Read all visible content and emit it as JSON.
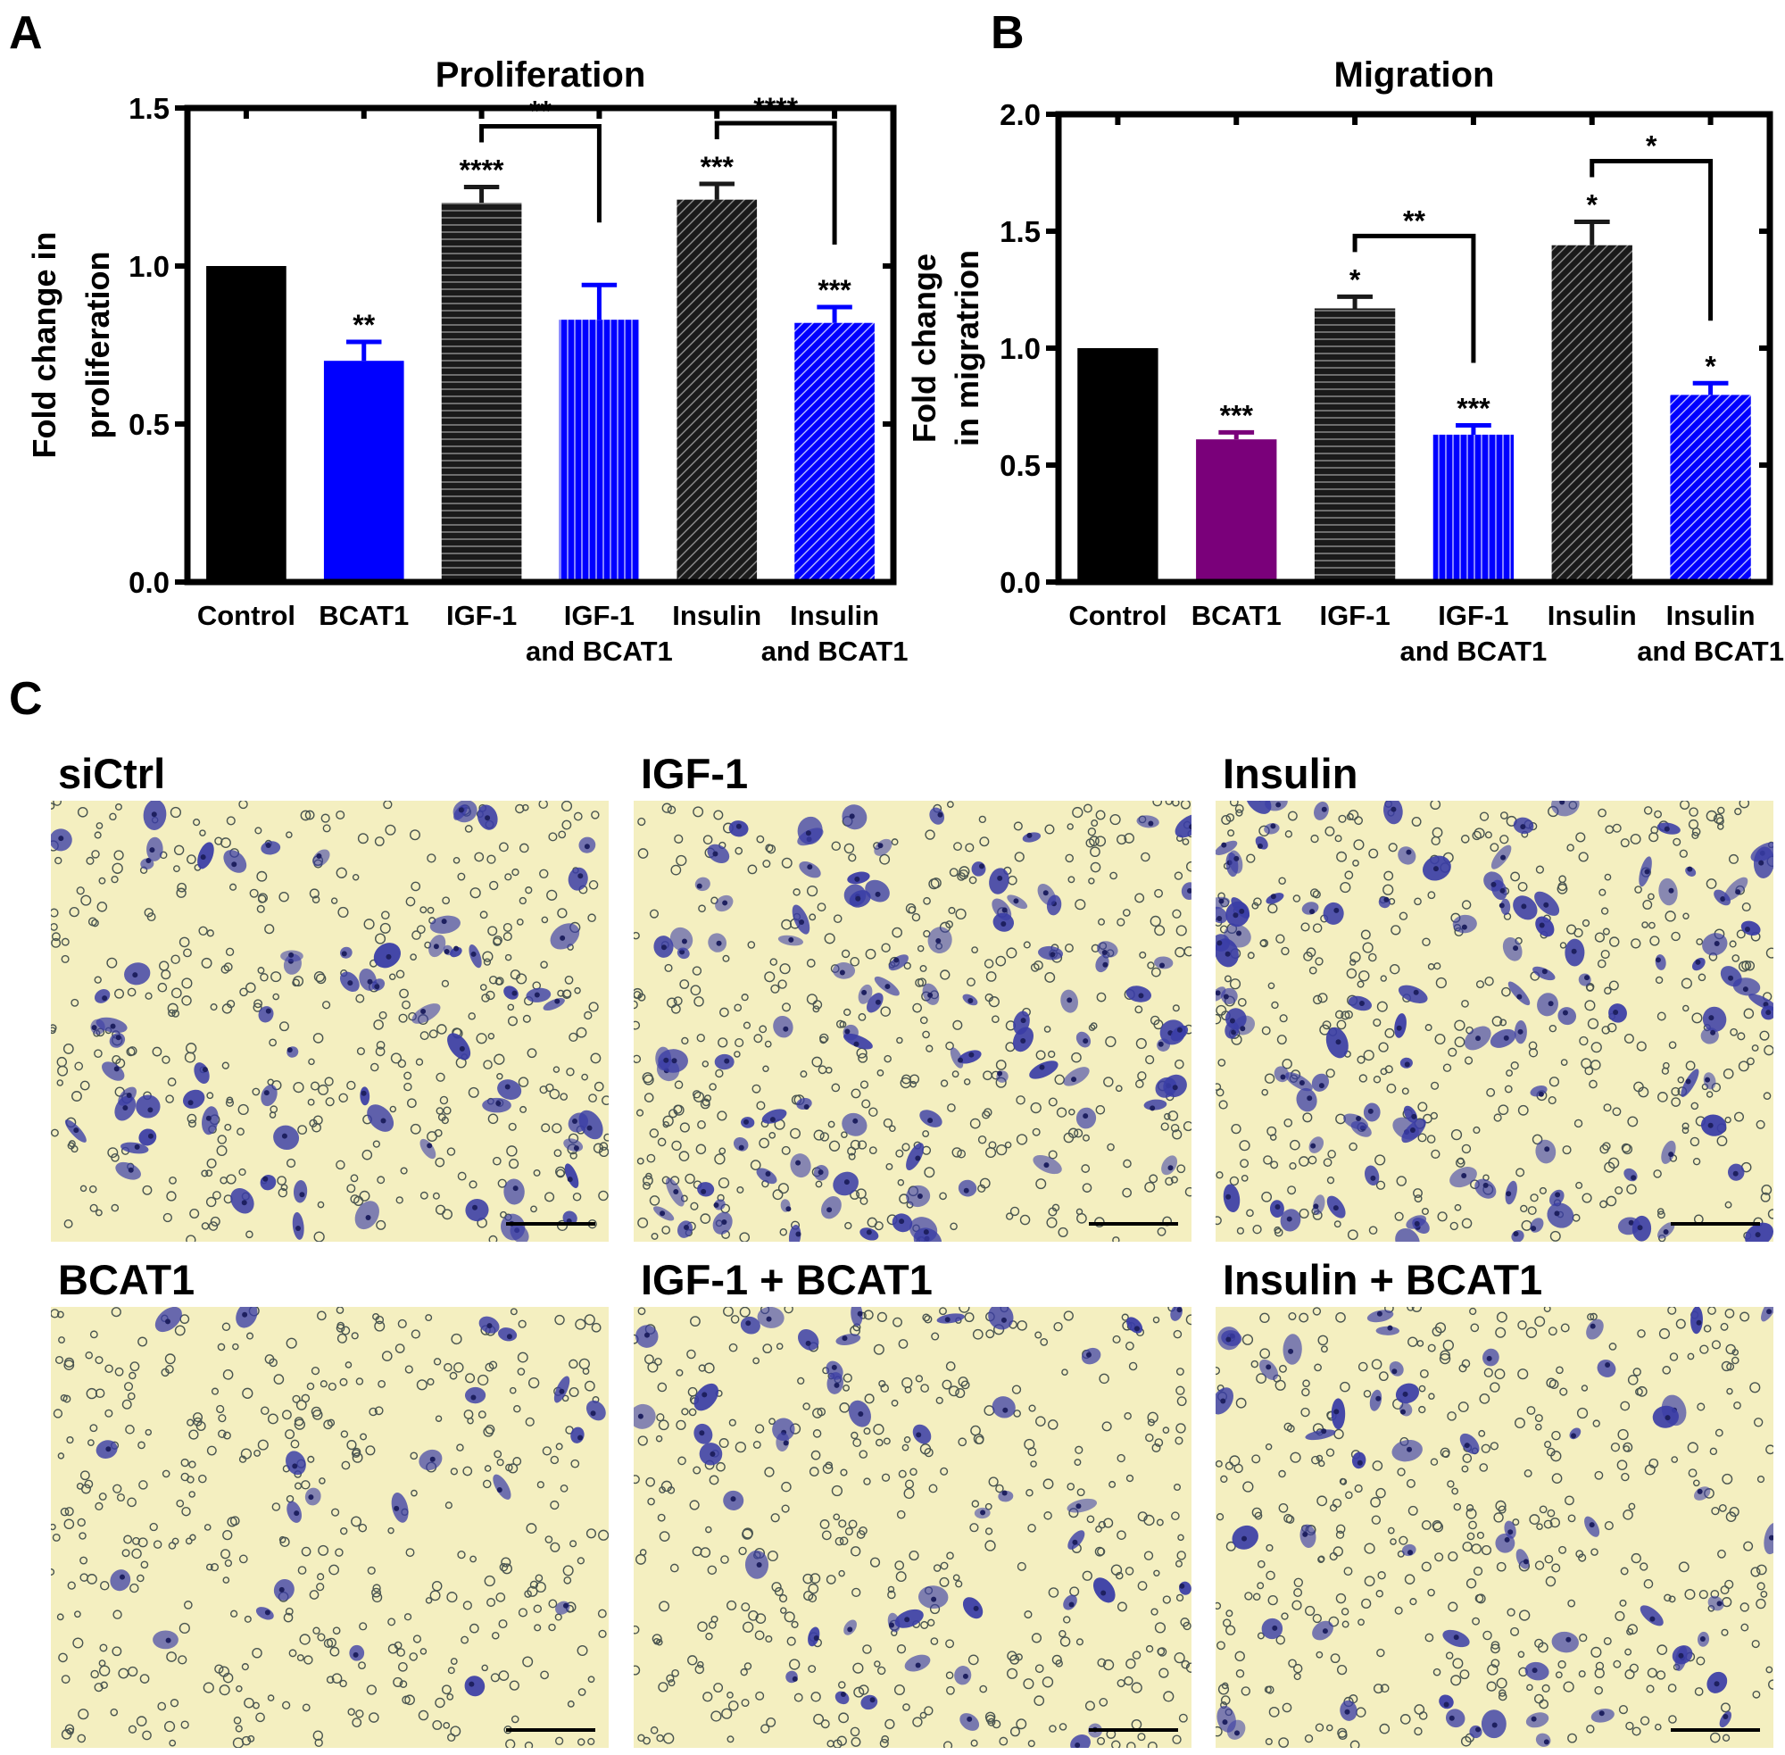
{
  "chart_data": [
    {
      "type": "bar",
      "panel_label": "A",
      "title": "Proliferation",
      "ylabel": [
        "Fold change in",
        "proliferation"
      ],
      "categories": [
        [
          "Control"
        ],
        [
          "BCAT1"
        ],
        [
          "IGF-1"
        ],
        [
          "IGF-1",
          "and BCAT1"
        ],
        [
          "Insulin"
        ],
        [
          "Insulin",
          "and BCAT1"
        ]
      ],
      "values": [
        1.0,
        0.7,
        1.2,
        0.83,
        1.21,
        0.82
      ],
      "errors": [
        0,
        0.06,
        0.05,
        0.11,
        0.05,
        0.05
      ],
      "colors": [
        "#000000",
        "#0000ff",
        "#1a1a1a",
        "#0000ff",
        "#1a1a1a",
        "#0000ff"
      ],
      "patterns": [
        "solid",
        "solid",
        "horizontal",
        "vertical",
        "diagonal",
        "diagonal"
      ],
      "star_labels": [
        null,
        "**",
        "****",
        null,
        "***",
        "***"
      ],
      "brackets": [
        {
          "from": 2,
          "to": 3,
          "label": "**"
        },
        {
          "from": 4,
          "to": 5,
          "label": "****"
        }
      ],
      "ylim": [
        0,
        1.5
      ],
      "yticks": [
        {
          "value": 0,
          "label": "0.0"
        },
        {
          "value": 0.5,
          "label": "0.5"
        },
        {
          "value": 1,
          "label": "1.0"
        },
        {
          "value": 1.5,
          "label": "1.5"
        }
      ]
    },
    {
      "type": "bar",
      "panel_label": "B",
      "title": "Migration",
      "ylabel": [
        "Fold change",
        "in migratrion"
      ],
      "categories": [
        [
          "Control"
        ],
        [
          "BCAT1"
        ],
        [
          "IGF-1"
        ],
        [
          "IGF-1",
          "and BCAT1"
        ],
        [
          "Insulin"
        ],
        [
          "Insulin",
          "and BCAT1"
        ]
      ],
      "values": [
        1.0,
        0.61,
        1.17,
        0.63,
        1.44,
        0.8
      ],
      "errors": [
        0,
        0.03,
        0.05,
        0.04,
        0.1,
        0.05
      ],
      "colors": [
        "#000000",
        "#7a007a",
        "#1a1a1a",
        "#0000ff",
        "#1a1a1a",
        "#0000ff"
      ],
      "patterns": [
        "solid",
        "solid",
        "horizontal",
        "vertical",
        "diagonal",
        "diagonal"
      ],
      "star_labels": [
        null,
        "***",
        "*",
        "***",
        "*",
        "*"
      ],
      "brackets": [
        {
          "from": 2,
          "to": 3,
          "label": "**"
        },
        {
          "from": 4,
          "to": 5,
          "label": "*"
        }
      ],
      "ylim": [
        0,
        2
      ],
      "yticks": [
        {
          "value": 0,
          "label": "0.0"
        },
        {
          "value": 0.5,
          "label": "0.5"
        },
        {
          "value": 1,
          "label": "1.0"
        },
        {
          "value": 1.5,
          "label": "1.5"
        },
        {
          "value": 2,
          "label": "2.0"
        }
      ]
    }
  ],
  "panel_c": {
    "label": "C",
    "images": [
      {
        "title": "siCtrl"
      },
      {
        "title": "IGF-1"
      },
      {
        "title": "Insulin"
      },
      {
        "title": "BCAT1"
      },
      {
        "title": "IGF-1 + BCAT1"
      },
      {
        "title": "Insulin + BCAT1"
      }
    ]
  }
}
